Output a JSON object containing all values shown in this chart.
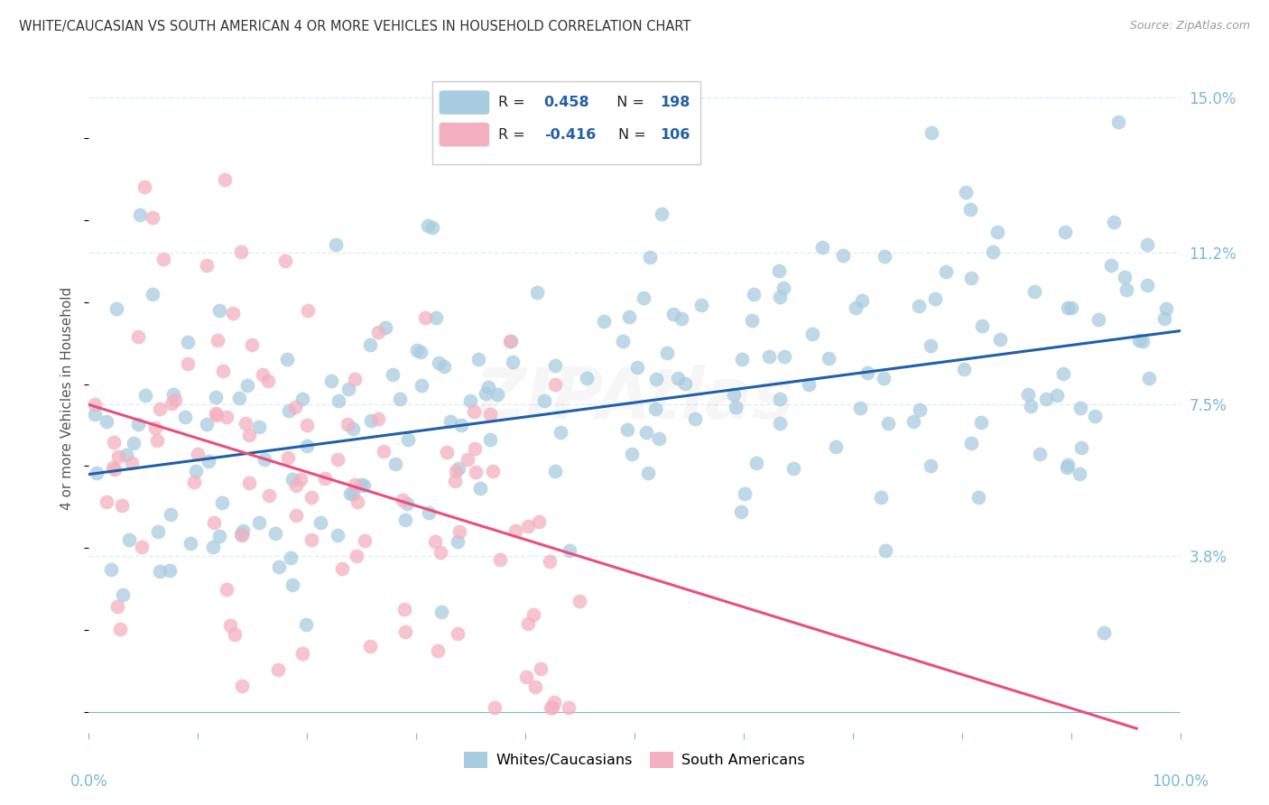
{
  "title": "WHITE/CAUCASIAN VS SOUTH AMERICAN 4 OR MORE VEHICLES IN HOUSEHOLD CORRELATION CHART",
  "source": "Source: ZipAtlas.com",
  "ylabel": "4 or more Vehicles in Household",
  "yticks": [
    0.0,
    0.038,
    0.075,
    0.112,
    0.15
  ],
  "ytick_labels": [
    "",
    "3.8%",
    "7.5%",
    "11.2%",
    "15.0%"
  ],
  "blue_R": 0.458,
  "blue_N": 198,
  "pink_R": -0.416,
  "pink_N": 106,
  "blue_color": "#a8cce0",
  "pink_color": "#f4b0c0",
  "blue_line_color": "#2060a8",
  "pink_line_color": "#e8507a",
  "tick_color": "#7ab8d8",
  "grid_color": "#ddeef8",
  "legend_label_blue": "Whites/Caucasians",
  "legend_label_pink": "South Americans",
  "blue_seed": 42,
  "pink_seed": 77,
  "xmin": 0.0,
  "xmax": 1.0,
  "ymin": -0.005,
  "ymax": 0.158,
  "blue_trend_x0": 0.0,
  "blue_trend_x1": 1.0,
  "blue_trend_y0": 0.058,
  "blue_trend_y1": 0.093,
  "pink_trend_x0": 0.0,
  "pink_trend_x1": 0.96,
  "pink_trend_y0": 0.075,
  "pink_trend_y1": -0.004,
  "background_color": "#ffffff",
  "watermark_text": "ZIPAtlas",
  "watermark_alpha": 0.07
}
